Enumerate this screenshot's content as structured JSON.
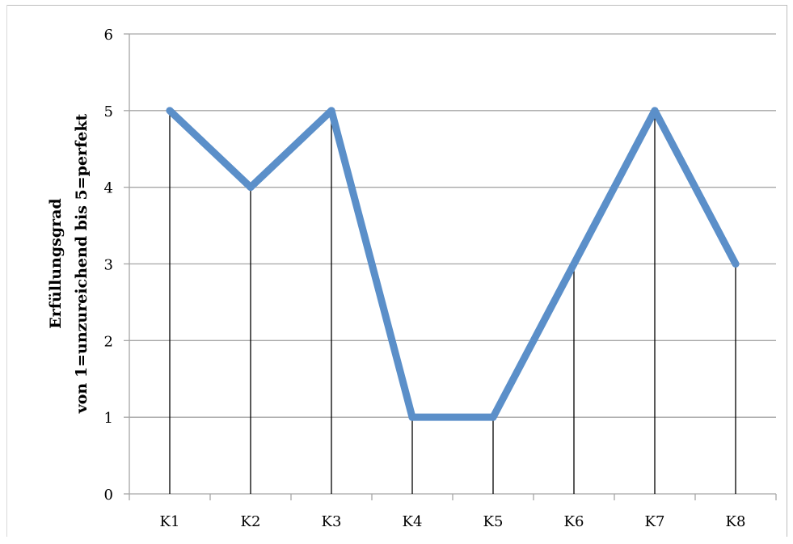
{
  "chart_data": {
    "type": "line",
    "categories": [
      "K1",
      "K2",
      "K3",
      "K4",
      "K5",
      "K6",
      "K7",
      "K8"
    ],
    "series": [
      {
        "values": [
          5,
          4,
          5,
          1,
          1,
          3,
          5,
          3
        ]
      }
    ],
    "ylabel_line1": "Erfüllungsgrad",
    "ylabel_line2": "von 1=unzureichend bis 5=perfekt",
    "ylim": [
      0,
      6
    ],
    "yticks": [
      "0",
      "1",
      "2",
      "3",
      "4",
      "5",
      "6"
    ],
    "grid": true,
    "drop_lines": true,
    "line_color": "#5b8fc9",
    "grid_color": "#a6a6a6"
  }
}
